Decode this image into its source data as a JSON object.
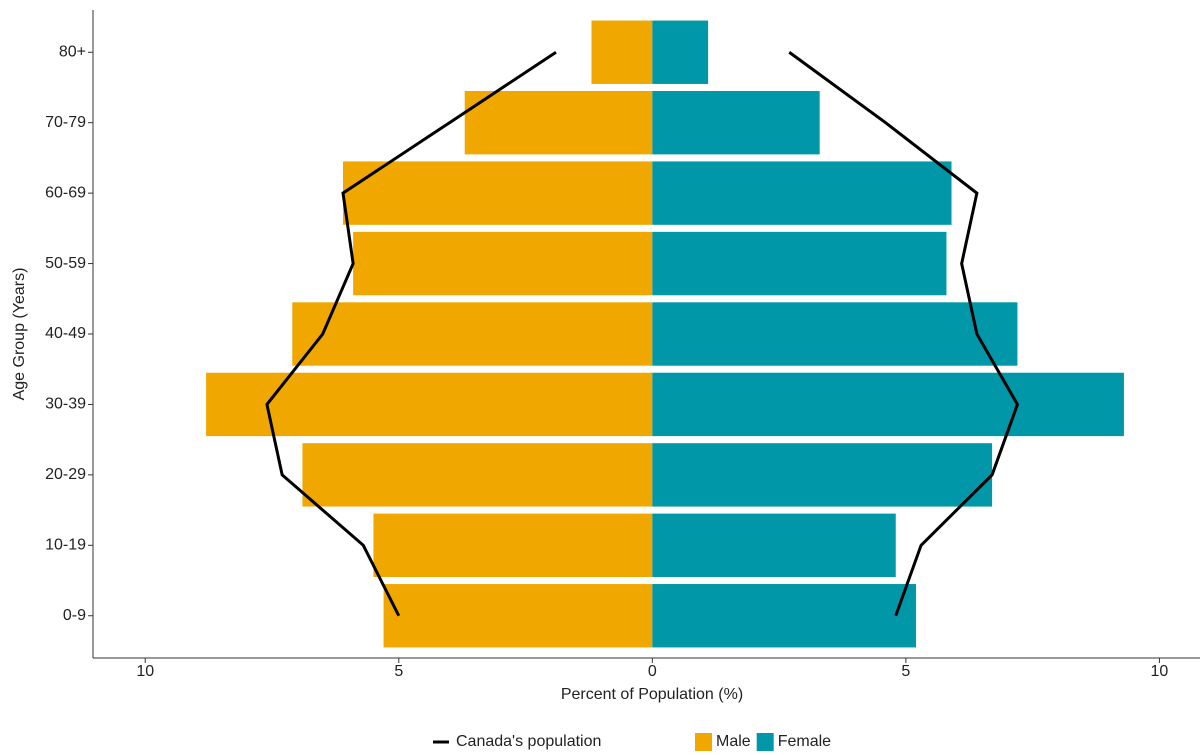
{
  "chart_data": {
    "type": "pyramid",
    "x_label": "Percent of Population (%)",
    "y_label": "Age Group (Years)",
    "categories": [
      "0-9",
      "10-19",
      "20-29",
      "30-39",
      "40-49",
      "50-59",
      "60-69",
      "70-79",
      "80+"
    ],
    "series": [
      {
        "name": "Male",
        "color": "#f0a800",
        "values": [
          -5.3,
          -5.5,
          -6.9,
          -8.8,
          -7.1,
          -5.9,
          -6.1,
          -3.7,
          -1.2
        ]
      },
      {
        "name": "Female",
        "color": "#0098a8",
        "values": [
          5.2,
          4.8,
          6.7,
          9.3,
          7.2,
          5.8,
          5.9,
          3.3,
          1.1
        ]
      }
    ],
    "reference": {
      "name": "Canada's population",
      "color": "#000000",
      "male": [
        -5.0,
        -5.7,
        -7.3,
        -7.6,
        -6.5,
        -5.9,
        -6.1,
        -4.0,
        -1.9
      ],
      "female": [
        4.8,
        5.3,
        6.7,
        7.2,
        6.4,
        6.1,
        6.4,
        4.6,
        2.7
      ]
    },
    "xlim": [
      -11.03,
      10.8
    ],
    "xticks": [
      {
        "value": -10,
        "label": "10"
      },
      {
        "value": -5,
        "label": "5"
      },
      0,
      5,
      {
        "value": 10,
        "label": "10"
      }
    ],
    "legend": "bottom"
  }
}
